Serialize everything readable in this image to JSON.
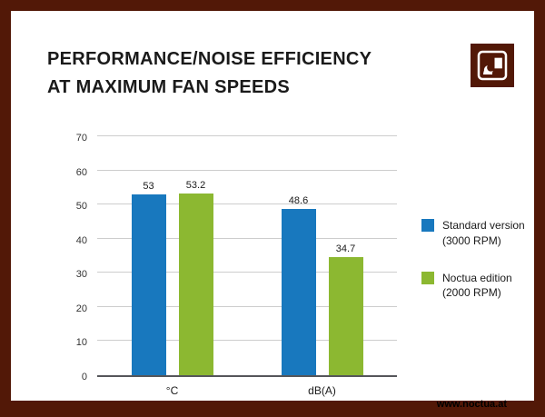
{
  "colors": {
    "brand_brown": "#521807",
    "standard_blue": "#1878BE",
    "noctua_green": "#8CB831",
    "axis_gray": "#55565a",
    "grid_gray": "#cdcdcd"
  },
  "title": {
    "line1": "PERFORMANCE/NOISE EFFICIENCY",
    "line2": "AT MAXIMUM FAN SPEEDS"
  },
  "chart_data": {
    "type": "bar",
    "categories": [
      "°C",
      "dB(A)"
    ],
    "series": [
      {
        "name": "Standard version (3000 RPM)",
        "values": [
          53,
          48.6
        ],
        "color": "#1878BE"
      },
      {
        "name": "Noctua edition (2000 RPM)",
        "values": [
          53.2,
          34.7
        ],
        "color": "#8CB831"
      }
    ],
    "value_labels": [
      [
        "53",
        "48.6"
      ],
      [
        "53.2",
        "34.7"
      ]
    ],
    "title": "PERFORMANCE/NOISE EFFICIENCY AT MAXIMUM FAN SPEEDS",
    "xlabel": "",
    "ylabel": "",
    "ylim": [
      0,
      70
    ],
    "yticks": [
      0,
      10,
      20,
      30,
      40,
      50,
      60,
      70
    ],
    "ytick_step": 10,
    "grid": true,
    "legend_position": "right"
  },
  "legend": {
    "items": [
      {
        "line1": "Standard version",
        "line2": "(3000 RPM)"
      },
      {
        "line1": "Noctua edition",
        "line2": "(2000 RPM)"
      }
    ]
  },
  "footer": {
    "website": "www.noctua.at"
  }
}
